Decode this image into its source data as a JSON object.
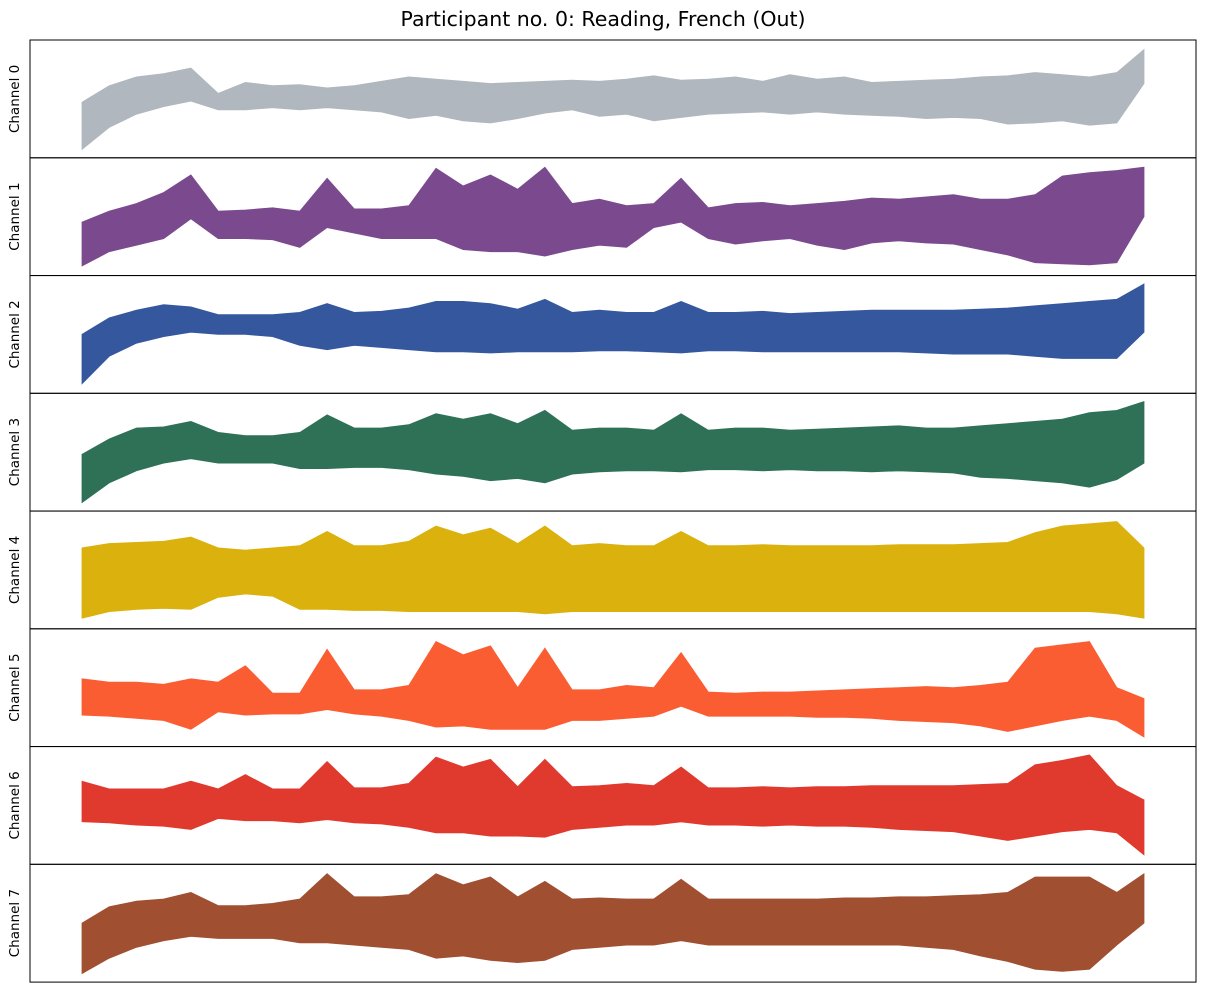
{
  "chart_data": {
    "type": "area",
    "title": "Participant no. 0: Reading, French (Out)",
    "subplots": [
      {
        "ylabel": "Channel 0",
        "color": "#b0b7be",
        "upper": [
          0.47,
          0.62,
          0.7,
          0.73,
          0.78,
          0.55,
          0.65,
          0.62,
          0.63,
          0.6,
          0.62,
          0.66,
          0.7,
          0.68,
          0.66,
          0.64,
          0.65,
          0.66,
          0.67,
          0.66,
          0.68,
          0.71,
          0.67,
          0.68,
          0.7,
          0.66,
          0.72,
          0.68,
          0.7,
          0.65,
          0.66,
          0.67,
          0.68,
          0.7,
          0.71,
          0.74,
          0.72,
          0.7,
          0.74,
          0.95
        ],
        "lower": [
          0.04,
          0.24,
          0.36,
          0.43,
          0.48,
          0.4,
          0.4,
          0.42,
          0.4,
          0.42,
          0.4,
          0.38,
          0.32,
          0.35,
          0.3,
          0.28,
          0.32,
          0.37,
          0.4,
          0.34,
          0.36,
          0.3,
          0.33,
          0.36,
          0.37,
          0.38,
          0.36,
          0.38,
          0.36,
          0.35,
          0.34,
          0.32,
          0.33,
          0.32,
          0.27,
          0.28,
          0.3,
          0.26,
          0.28,
          0.64
        ]
      },
      {
        "ylabel": "Channel 1",
        "color": "#7b4a8e",
        "upper": [
          0.45,
          0.55,
          0.62,
          0.72,
          0.88,
          0.55,
          0.56,
          0.58,
          0.55,
          0.85,
          0.57,
          0.57,
          0.6,
          0.94,
          0.78,
          0.88,
          0.75,
          0.95,
          0.62,
          0.66,
          0.6,
          0.62,
          0.85,
          0.58,
          0.62,
          0.63,
          0.6,
          0.62,
          0.64,
          0.67,
          0.66,
          0.68,
          0.7,
          0.66,
          0.66,
          0.7,
          0.87,
          0.9,
          0.92,
          0.95
        ],
        "lower": [
          0.05,
          0.18,
          0.24,
          0.3,
          0.48,
          0.3,
          0.3,
          0.29,
          0.22,
          0.4,
          0.35,
          0.3,
          0.3,
          0.3,
          0.2,
          0.18,
          0.18,
          0.14,
          0.2,
          0.24,
          0.22,
          0.4,
          0.45,
          0.3,
          0.25,
          0.28,
          0.3,
          0.24,
          0.2,
          0.26,
          0.28,
          0.26,
          0.25,
          0.2,
          0.15,
          0.08,
          0.07,
          0.06,
          0.08,
          0.5
        ]
      },
      {
        "ylabel": "Channel 2",
        "color": "#35579e",
        "upper": [
          0.5,
          0.65,
          0.72,
          0.77,
          0.75,
          0.68,
          0.68,
          0.68,
          0.7,
          0.78,
          0.7,
          0.71,
          0.74,
          0.8,
          0.8,
          0.78,
          0.73,
          0.82,
          0.7,
          0.72,
          0.7,
          0.7,
          0.8,
          0.7,
          0.7,
          0.71,
          0.69,
          0.7,
          0.71,
          0.72,
          0.72,
          0.72,
          0.72,
          0.73,
          0.74,
          0.76,
          0.78,
          0.8,
          0.82,
          0.96
        ],
        "lower": [
          0.05,
          0.3,
          0.42,
          0.48,
          0.52,
          0.5,
          0.5,
          0.48,
          0.4,
          0.36,
          0.4,
          0.38,
          0.36,
          0.34,
          0.34,
          0.33,
          0.34,
          0.34,
          0.34,
          0.35,
          0.35,
          0.34,
          0.33,
          0.35,
          0.35,
          0.34,
          0.34,
          0.34,
          0.34,
          0.34,
          0.34,
          0.33,
          0.32,
          0.32,
          0.32,
          0.3,
          0.28,
          0.28,
          0.28,
          0.52
        ]
      },
      {
        "ylabel": "Channel 3",
        "color": "#2e7157",
        "upper": [
          0.48,
          0.62,
          0.72,
          0.73,
          0.78,
          0.68,
          0.65,
          0.65,
          0.68,
          0.84,
          0.72,
          0.72,
          0.75,
          0.85,
          0.8,
          0.85,
          0.76,
          0.88,
          0.7,
          0.72,
          0.72,
          0.7,
          0.85,
          0.7,
          0.72,
          0.72,
          0.7,
          0.71,
          0.72,
          0.73,
          0.74,
          0.72,
          0.72,
          0.74,
          0.76,
          0.78,
          0.8,
          0.86,
          0.88,
          0.96
        ],
        "lower": [
          0.04,
          0.22,
          0.33,
          0.4,
          0.44,
          0.4,
          0.4,
          0.4,
          0.35,
          0.35,
          0.36,
          0.36,
          0.34,
          0.3,
          0.28,
          0.24,
          0.26,
          0.22,
          0.3,
          0.32,
          0.33,
          0.33,
          0.32,
          0.34,
          0.34,
          0.33,
          0.34,
          0.33,
          0.33,
          0.32,
          0.33,
          0.32,
          0.31,
          0.27,
          0.26,
          0.24,
          0.22,
          0.18,
          0.25,
          0.4
        ]
      },
      {
        "ylabel": "Channel 4",
        "color": "#dbb10d",
        "upper": [
          0.7,
          0.74,
          0.75,
          0.76,
          0.8,
          0.7,
          0.68,
          0.7,
          0.72,
          0.85,
          0.72,
          0.72,
          0.76,
          0.9,
          0.82,
          0.88,
          0.74,
          0.9,
          0.72,
          0.74,
          0.72,
          0.72,
          0.85,
          0.72,
          0.72,
          0.73,
          0.72,
          0.72,
          0.72,
          0.72,
          0.73,
          0.73,
          0.73,
          0.74,
          0.75,
          0.84,
          0.9,
          0.92,
          0.94,
          0.7
        ],
        "lower": [
          0.06,
          0.12,
          0.14,
          0.15,
          0.14,
          0.25,
          0.28,
          0.26,
          0.14,
          0.14,
          0.13,
          0.13,
          0.12,
          0.12,
          0.12,
          0.12,
          0.12,
          0.1,
          0.12,
          0.12,
          0.12,
          0.12,
          0.12,
          0.12,
          0.12,
          0.12,
          0.12,
          0.12,
          0.12,
          0.12,
          0.12,
          0.12,
          0.12,
          0.12,
          0.12,
          0.12,
          0.12,
          0.12,
          0.1,
          0.06
        ]
      },
      {
        "ylabel": "Channel 5",
        "color": "#fb5d33",
        "upper": [
          0.58,
          0.55,
          0.55,
          0.53,
          0.58,
          0.55,
          0.7,
          0.45,
          0.45,
          0.85,
          0.48,
          0.48,
          0.52,
          0.92,
          0.8,
          0.88,
          0.5,
          0.86,
          0.48,
          0.48,
          0.52,
          0.5,
          0.82,
          0.46,
          0.45,
          0.46,
          0.46,
          0.47,
          0.48,
          0.49,
          0.5,
          0.51,
          0.5,
          0.52,
          0.55,
          0.86,
          0.89,
          0.92,
          0.5,
          0.4
        ],
        "lower": [
          0.25,
          0.24,
          0.22,
          0.2,
          0.12,
          0.28,
          0.25,
          0.26,
          0.26,
          0.3,
          0.26,
          0.24,
          0.2,
          0.14,
          0.15,
          0.12,
          0.12,
          0.12,
          0.2,
          0.2,
          0.22,
          0.24,
          0.33,
          0.24,
          0.24,
          0.24,
          0.24,
          0.23,
          0.23,
          0.22,
          0.2,
          0.19,
          0.18,
          0.15,
          0.1,
          0.15,
          0.2,
          0.24,
          0.2,
          0.05
        ]
      },
      {
        "ylabel": "Channel 6",
        "color": "#e0392e",
        "upper": [
          0.72,
          0.65,
          0.65,
          0.65,
          0.72,
          0.65,
          0.78,
          0.65,
          0.65,
          0.9,
          0.66,
          0.66,
          0.7,
          0.94,
          0.85,
          0.92,
          0.67,
          0.92,
          0.67,
          0.68,
          0.7,
          0.68,
          0.85,
          0.66,
          0.66,
          0.67,
          0.66,
          0.67,
          0.67,
          0.68,
          0.68,
          0.68,
          0.68,
          0.69,
          0.7,
          0.87,
          0.91,
          0.96,
          0.68,
          0.55
        ],
        "lower": [
          0.35,
          0.34,
          0.32,
          0.31,
          0.28,
          0.38,
          0.36,
          0.36,
          0.34,
          0.37,
          0.34,
          0.33,
          0.3,
          0.25,
          0.25,
          0.22,
          0.22,
          0.21,
          0.28,
          0.3,
          0.32,
          0.32,
          0.35,
          0.32,
          0.32,
          0.31,
          0.32,
          0.31,
          0.31,
          0.3,
          0.28,
          0.27,
          0.26,
          0.22,
          0.18,
          0.22,
          0.26,
          0.28,
          0.25,
          0.05
        ]
      },
      {
        "ylabel": "Channel 7",
        "color": "#a04f31",
        "upper": [
          0.5,
          0.65,
          0.7,
          0.72,
          0.78,
          0.66,
          0.66,
          0.68,
          0.72,
          0.95,
          0.74,
          0.74,
          0.76,
          0.95,
          0.85,
          0.92,
          0.74,
          0.88,
          0.72,
          0.73,
          0.72,
          0.72,
          0.9,
          0.72,
          0.72,
          0.72,
          0.72,
          0.72,
          0.73,
          0.73,
          0.74,
          0.74,
          0.75,
          0.76,
          0.78,
          0.92,
          0.92,
          0.92,
          0.78,
          0.95
        ],
        "lower": [
          0.04,
          0.18,
          0.28,
          0.34,
          0.38,
          0.36,
          0.36,
          0.36,
          0.32,
          0.32,
          0.3,
          0.28,
          0.26,
          0.18,
          0.2,
          0.16,
          0.14,
          0.16,
          0.26,
          0.28,
          0.3,
          0.3,
          0.34,
          0.3,
          0.3,
          0.3,
          0.3,
          0.3,
          0.3,
          0.3,
          0.3,
          0.28,
          0.26,
          0.2,
          0.15,
          0.08,
          0.06,
          0.08,
          0.3,
          0.5
        ]
      }
    ]
  }
}
